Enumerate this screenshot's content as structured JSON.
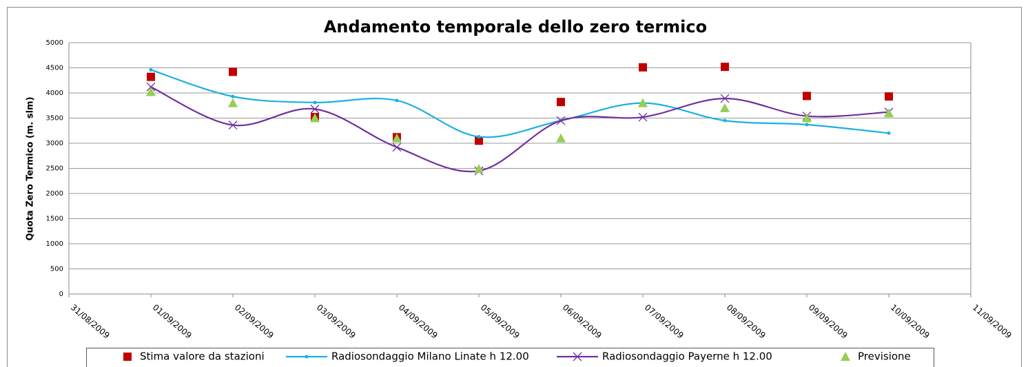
{
  "chart_data": {
    "type": "line",
    "title": "Andamento temporale dello zero termico",
    "y_label": "Quota Zero Termico (m. slm)",
    "categories": [
      "31/08/2009",
      "01/09/2009",
      "02/09/2009",
      "03/09/2009",
      "04/09/2009",
      "05/09/2009",
      "06/09/2009",
      "07/09/2009",
      "08/09/2009",
      "09/09/2009",
      "10/09/2009",
      "11/09/2009"
    ],
    "series": [
      {
        "name": "Stima valore da stazioni",
        "color": "#c00000",
        "marker": "square",
        "line": false,
        "values": [
          null,
          4320,
          4420,
          3520,
          3120,
          3050,
          3820,
          4510,
          4520,
          3940,
          3930,
          null
        ]
      },
      {
        "name": "Radiosondaggio Milano Linate h 12.00",
        "color": "#1ab0e0",
        "marker": "circle",
        "line": true,
        "values": [
          null,
          4460,
          3930,
          3810,
          3850,
          3130,
          3450,
          3800,
          3450,
          3370,
          3200,
          null
        ]
      },
      {
        "name": "Radiosondaggio Payerne h 12.00",
        "color": "#7030a0",
        "marker": "x",
        "line": true,
        "values": [
          null,
          4120,
          3360,
          3680,
          2920,
          2450,
          3450,
          3520,
          3890,
          3540,
          3620,
          null
        ]
      },
      {
        "name": "Previsione",
        "color": "#92d050",
        "marker": "triangle",
        "line": false,
        "values": [
          null,
          4020,
          3800,
          3500,
          3100,
          2490,
          3100,
          3800,
          3700,
          3500,
          3600,
          null
        ]
      }
    ],
    "ylim": [
      0,
      5000
    ],
    "yticks": [
      0,
      500,
      1000,
      1500,
      2000,
      2500,
      3000,
      3500,
      4000,
      4500,
      5000
    ],
    "grid": true,
    "legend": "bottom"
  }
}
